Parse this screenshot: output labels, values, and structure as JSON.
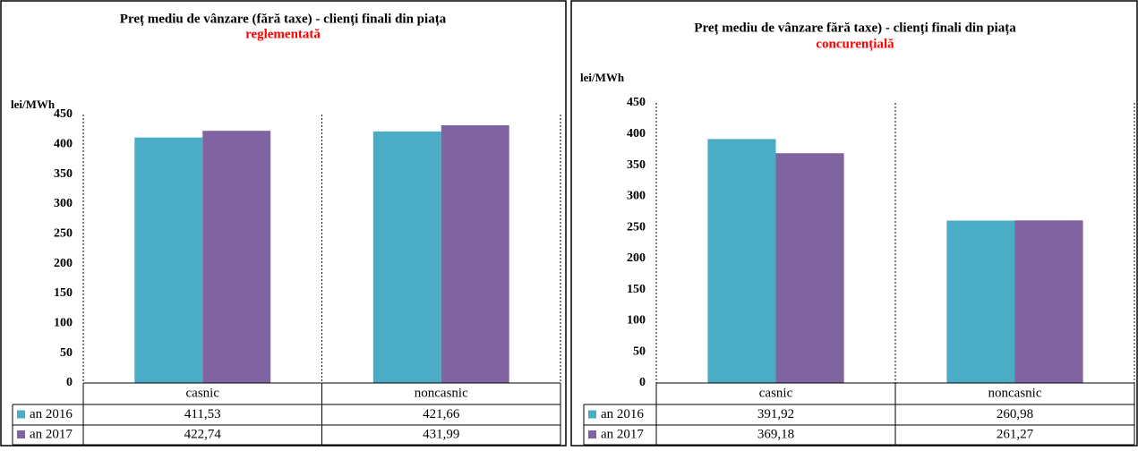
{
  "chart_data": [
    {
      "type": "bar",
      "title": "Preț mediu de vânzare (fără taxe) - clienți finali din piața",
      "subtitle": "reglementată",
      "subtitle_color": "#ff0000",
      "y_label": "lei/MWh",
      "categories": [
        "casnic",
        "noncasnic"
      ],
      "series": [
        {
          "name": "an 2016",
          "color": "#4bacc6",
          "values": [
            411.53,
            421.66
          ],
          "value_labels": [
            "411,53",
            "421,66"
          ]
        },
        {
          "name": "an 2017",
          "color": "#8064a2",
          "values": [
            422.74,
            431.99
          ],
          "value_labels": [
            "422,74",
            "431,99"
          ]
        }
      ],
      "ylim": [
        0,
        450
      ],
      "yticks": [
        0,
        50,
        100,
        150,
        200,
        250,
        300,
        350,
        400,
        450
      ]
    },
    {
      "type": "bar",
      "title": "Preț mediu de vânzare fără taxe) - clienți finali din piața",
      "subtitle": "concurențială",
      "subtitle_color": "#ff0000",
      "y_label": "lei/MWh",
      "categories": [
        "casnic",
        "noncasnic"
      ],
      "series": [
        {
          "name": "an 2016",
          "color": "#4bacc6",
          "values": [
            391.92,
            260.98
          ],
          "value_labels": [
            "391,92",
            "260,98"
          ]
        },
        {
          "name": "an 2017",
          "color": "#8064a2",
          "values": [
            369.18,
            261.27
          ],
          "value_labels": [
            "369,18",
            "261,27"
          ]
        }
      ],
      "ylim": [
        0,
        450
      ],
      "yticks": [
        0,
        50,
        100,
        150,
        200,
        250,
        300,
        350,
        400,
        450
      ]
    }
  ]
}
